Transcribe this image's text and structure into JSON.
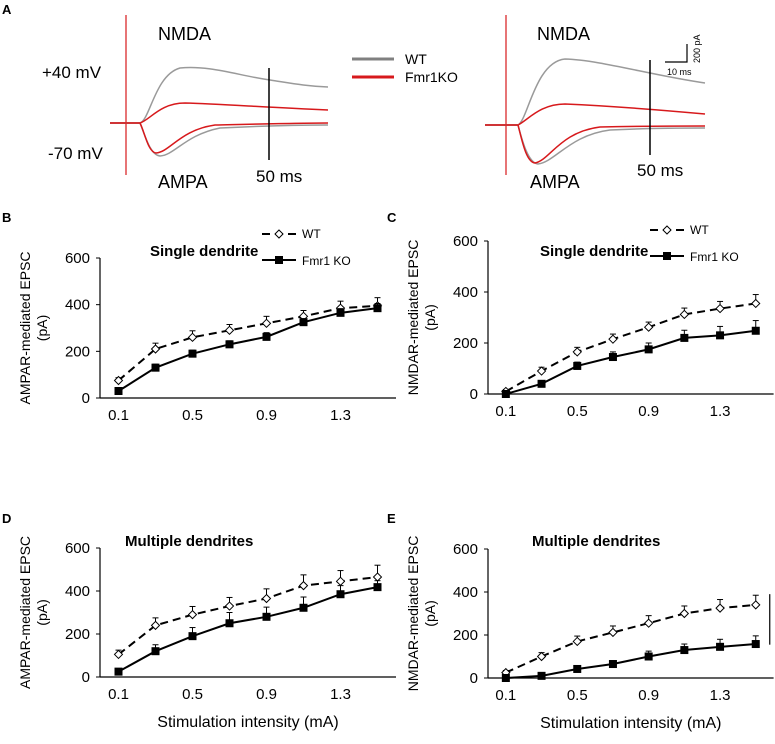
{
  "panel_a": {
    "label": "A",
    "nmda_label": "NMDA",
    "ampa_label": "AMPA",
    "plus40": "+40 mV",
    "minus70": "-70 mV",
    "marker_50ms": "50 ms",
    "legend": [
      {
        "name": "WT",
        "color": "#808080"
      },
      {
        "name": "Fmr1KO",
        "color": "#d7191c"
      }
    ],
    "scale_bar": {
      "current": "200 pA",
      "time": "10 ms"
    }
  },
  "chart_data": [
    {
      "panel": "B",
      "type": "line",
      "title": "Single dendrite",
      "xlabel": "",
      "ylabel": [
        "AMPAR-mediated EPSC",
        "(pA)"
      ],
      "x": [
        0.1,
        0.3,
        0.5,
        0.7,
        0.9,
        1.1,
        1.3,
        1.5
      ],
      "xticks": [
        "0.1",
        "0.5",
        "0.9",
        "1.3"
      ],
      "yticks": [
        "0",
        "200",
        "400",
        "600"
      ],
      "ylim": [
        0,
        600
      ],
      "legend": [
        "WT",
        "Fmr1 KO"
      ],
      "series": [
        {
          "name": "WT",
          "values": [
            75,
            210,
            260,
            290,
            320,
            350,
            385,
            395
          ],
          "err": [
            12,
            25,
            28,
            25,
            30,
            25,
            30,
            35
          ]
        },
        {
          "name": "Fmr1 KO",
          "values": [
            30,
            130,
            190,
            230,
            262,
            325,
            365,
            385
          ],
          "err": [
            8,
            15,
            15,
            15,
            18,
            15,
            18,
            20
          ]
        }
      ]
    },
    {
      "panel": "C",
      "type": "line",
      "title": "Single dendrite",
      "xlabel": "",
      "ylabel": [
        "NMDAR-mediated EPSC",
        "(pA)"
      ],
      "x": [
        0.1,
        0.3,
        0.5,
        0.7,
        0.9,
        1.1,
        1.3,
        1.5
      ],
      "xticks": [
        "0.1",
        "0.5",
        "0.9",
        "1.3"
      ],
      "yticks": [
        "0",
        "200",
        "400",
        "600"
      ],
      "ylim": [
        0,
        600
      ],
      "legend": [
        "WT",
        "Fmr1 KO"
      ],
      "series": [
        {
          "name": "WT",
          "values": [
            10,
            90,
            165,
            215,
            262,
            312,
            335,
            355
          ],
          "err": [
            8,
            15,
            18,
            20,
            20,
            25,
            28,
            35
          ]
        },
        {
          "name": "Fmr1 KO",
          "values": [
            0,
            40,
            110,
            145,
            175,
            220,
            230,
            248
          ],
          "err": [
            5,
            8,
            15,
            20,
            25,
            30,
            35,
            40
          ]
        }
      ]
    },
    {
      "panel": "D",
      "type": "line",
      "title": "Multiple dendrites",
      "xlabel": "Stimulation intensity (mA)",
      "ylabel": [
        "AMPAR-mediated EPSC",
        "(pA)"
      ],
      "x": [
        0.1,
        0.3,
        0.5,
        0.7,
        0.9,
        1.1,
        1.3,
        1.5
      ],
      "xticks": [
        "0.1",
        "0.5",
        "0.9",
        "1.3"
      ],
      "yticks": [
        "0",
        "200",
        "400",
        "600"
      ],
      "ylim": [
        0,
        600
      ],
      "series": [
        {
          "name": "WT",
          "values": [
            105,
            240,
            290,
            330,
            365,
            425,
            445,
            465
          ],
          "err": [
            20,
            35,
            38,
            40,
            45,
            50,
            50,
            55
          ]
        },
        {
          "name": "Fmr1 KO",
          "values": [
            25,
            120,
            190,
            250,
            280,
            322,
            385,
            418
          ],
          "err": [
            8,
            30,
            40,
            50,
            45,
            50,
            40,
            30
          ]
        }
      ]
    },
    {
      "panel": "E",
      "type": "line",
      "title": "Multiple dendrites",
      "xlabel": "Stimulation intensity (mA)",
      "ylabel": [
        "NMDAR-mediated EPSC",
        "(pA)"
      ],
      "x": [
        0.1,
        0.3,
        0.5,
        0.7,
        0.9,
        1.1,
        1.3,
        1.5
      ],
      "xticks": [
        "0.1",
        "0.5",
        "0.9",
        "1.3"
      ],
      "yticks": [
        "0",
        "200",
        "400",
        "600"
      ],
      "ylim": [
        0,
        600
      ],
      "significance": "*",
      "series": [
        {
          "name": "WT",
          "values": [
            25,
            100,
            170,
            212,
            255,
            300,
            325,
            340
          ],
          "err": [
            10,
            18,
            25,
            30,
            35,
            35,
            40,
            45
          ]
        },
        {
          "name": "Fmr1 KO",
          "values": [
            0,
            10,
            42,
            65,
            100,
            130,
            145,
            158
          ],
          "err": [
            3,
            8,
            10,
            15,
            25,
            28,
            35,
            38
          ]
        }
      ]
    }
  ]
}
